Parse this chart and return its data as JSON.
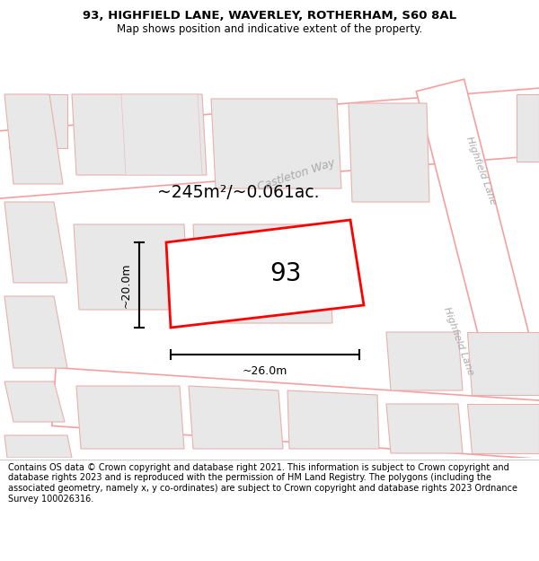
{
  "title_line1": "93, HIGHFIELD LANE, WAVERLEY, ROTHERHAM, S60 8AL",
  "title_line2": "Map shows position and indicative extent of the property.",
  "footer_text": "Contains OS data © Crown copyright and database right 2021. This information is subject to Crown copyright and database rights 2023 and is reproduced with the permission of HM Land Registry. The polygons (including the associated geometry, namely x, y co-ordinates) are subject to Crown copyright and database rights 2023 Ordnance Survey 100026316.",
  "area_text": "~245m²/~0.061ac.",
  "label_93": "93",
  "dim_height": "~20.0m",
  "dim_width": "~26.0m",
  "map_bg": "#ffffff",
  "highlight_color": "#ff0000",
  "building_fill": "#e8e8e8",
  "building_edge": "#d0b8b8",
  "road_line_color": "#f5a0a0",
  "street_color": "#aaaaaa",
  "street_name_castleton": "Castleton Way",
  "street_name_highfield_top": "Highfield Lane",
  "street_name_highfield_mid": "Highfield Lane",
  "title_fontsize": 9.5,
  "subtitle_fontsize": 8.5,
  "footer_fontsize": 7.0
}
